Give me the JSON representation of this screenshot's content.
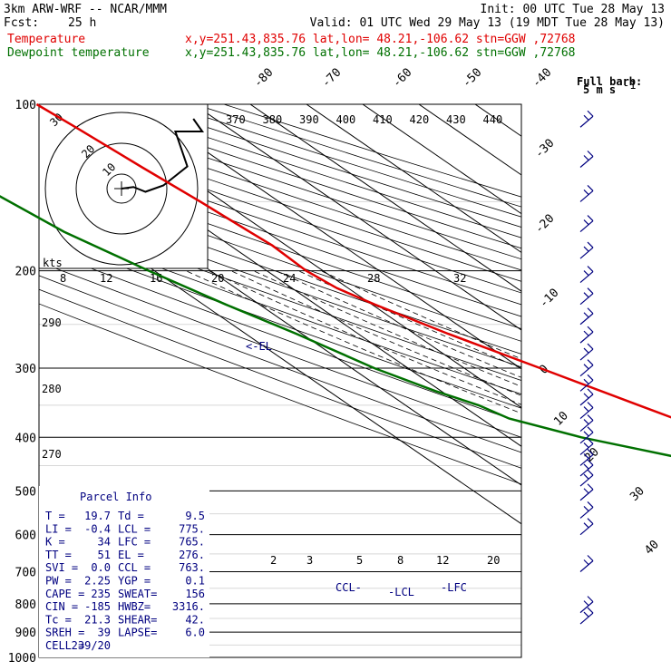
{
  "header": {
    "model": "3km ARW-WRF -- NCAR/MMM",
    "init": "Init: 00 UTC Tue 28 May 13",
    "fcst_label": "Fcst:",
    "fcst_value": "25 h",
    "valid": "Valid: 01 UTC Wed 29 May 13 (19 MDT Tue 28 May 13)",
    "temp_label": "Temperature",
    "temp_info": "x,y=251.43,835.76   lat,lon= 48.21,-106.62  stn=GGW ,72768",
    "dew_label": "Dewpoint temperature",
    "dew_info": "x,y=251.43,835.76   lat,lon= 48.21,-106.62  stn=GGW ,72768"
  },
  "barb_legend": {
    "line1": "Full barb:",
    "line2": "5 m s",
    "sup": "-1"
  },
  "hodograph": {
    "units": "kts",
    "ring_labels": [
      "10",
      "20",
      "30"
    ],
    "path": [
      [
        0,
        0
      ],
      [
        4,
        -1
      ],
      [
        8,
        2
      ],
      [
        14,
        -2
      ],
      [
        22,
        -14
      ],
      [
        18,
        -36
      ],
      [
        27,
        -36
      ],
      [
        24,
        -44
      ]
    ]
  },
  "parcel": {
    "title": "Parcel Info",
    "rows": [
      {
        "k1": "T   =",
        "v1": "19.7",
        "k2": "Td  =",
        "v2": "9.5"
      },
      {
        "k1": "LI  =",
        "v1": "-0.4",
        "k2": "LCL =",
        "v2": "775."
      },
      {
        "k1": "K   =",
        "v1": "34",
        "k2": "LFC =",
        "v2": "765."
      },
      {
        "k1": "TT  =",
        "v1": "51",
        "k2": "EL  =",
        "v2": "276."
      },
      {
        "k1": "SVI =",
        "v1": "0.0",
        "k2": "CCL =",
        "v2": "763."
      },
      {
        "k1": "PW  =",
        "v1": "2.25",
        "k2": "YGP =",
        "v2": "0.1"
      },
      {
        "k1": "CAPE =",
        "v1": "235",
        "k2": "SWEAT=",
        "v2": "156"
      },
      {
        "k1": "CIN =",
        "v1": "-185",
        "k2": "HWBZ=",
        "v2": "3316."
      },
      {
        "k1": "Tc  =",
        "v1": "21.3",
        "k2": "SHEAR=",
        "v2": "42."
      },
      {
        "k1": "SREH =",
        "v1": "39",
        "k2": "LAPSE=",
        "v2": "6.0"
      },
      {
        "k1": "CELL =",
        "v1": "239/20",
        "k2": "",
        "v2": ""
      }
    ]
  },
  "annotations": {
    "el": "<-EL",
    "ccl": "CCL-",
    "lcl": "-LCL",
    "lfc": "-LFC"
  },
  "chart_data": {
    "type": "line",
    "title": "Skew-T log-P sounding",
    "ylabel_ticks": [
      "100",
      "200",
      "300",
      "400",
      "500",
      "600",
      "700",
      "800",
      "900",
      "1000"
    ],
    "pressure_levels": [
      100,
      200,
      300,
      400,
      500,
      600,
      700,
      800,
      900,
      1000
    ],
    "isotherm_labels": [
      "-80",
      "-70",
      "-60",
      "-50",
      "-40",
      "-30",
      "-20",
      "-10",
      "0",
      "10",
      "20",
      "30",
      "40"
    ],
    "isotherm_values": [
      -80,
      -70,
      -60,
      -50,
      -40,
      -30,
      -20,
      -10,
      0,
      10,
      20,
      30,
      40
    ],
    "theta_e_labels": [
      "370",
      "380",
      "390",
      "400",
      "410",
      "420",
      "430",
      "440"
    ],
    "theta_labels": [
      "290",
      "280",
      "270"
    ],
    "theta_e_lower_labels": [
      "8",
      "12",
      "16",
      "20",
      "24",
      "28",
      "32"
    ],
    "mixing_ratio_labels": [
      "2",
      "3",
      "5",
      "8",
      "12",
      "20"
    ],
    "series": [
      {
        "name": "Temperature",
        "color": "#e00000",
        "p": [
          923,
          880,
          820,
          760,
          700,
          640,
          580,
          540,
          500,
          450,
          400,
          350,
          300,
          260,
          230,
          215,
          200,
          180,
          170,
          150,
          130,
          110,
          100
        ],
        "t": [
          19.7,
          16.5,
          12.0,
          8.0,
          4.0,
          0.5,
          -4.5,
          -8.0,
          -11.0,
          -16.0,
          -21.5,
          -28.5,
          -36.5,
          -44.0,
          -49.5,
          -52.0,
          -53.0,
          -52.5,
          -53.0,
          -54.0,
          -55.5,
          -57.0,
          -58.0
        ]
      },
      {
        "name": "Dewpoint temperature",
        "color": "#007000",
        "p": [
          923,
          880,
          840,
          800,
          760,
          720,
          680,
          640,
          600,
          560,
          540,
          520,
          500,
          470,
          450,
          420,
          400,
          370,
          350,
          330,
          300,
          260,
          230,
          200,
          170,
          140,
          120,
          100
        ],
        "t": [
          9.5,
          8.5,
          7.5,
          6.5,
          5.5,
          3.0,
          0.0,
          -3.5,
          -6.5,
          -9.0,
          -11.0,
          -12.5,
          -14.5,
          -22.0,
          -30.0,
          -40.0,
          -47.0,
          -55.0,
          -57.0,
          -61.0,
          -66.0,
          -71.0,
          -76.0,
          -81.0,
          -86.0,
          -89.0,
          -87.0,
          -82.0
        ]
      }
    ],
    "wind_barbs_p": [
      110,
      130,
      150,
      170,
      190,
      210,
      230,
      250,
      270,
      290,
      310,
      330,
      350,
      370,
      390,
      410,
      430,
      450,
      470,
      490,
      520,
      560,
      600,
      700,
      830,
      870
    ]
  }
}
